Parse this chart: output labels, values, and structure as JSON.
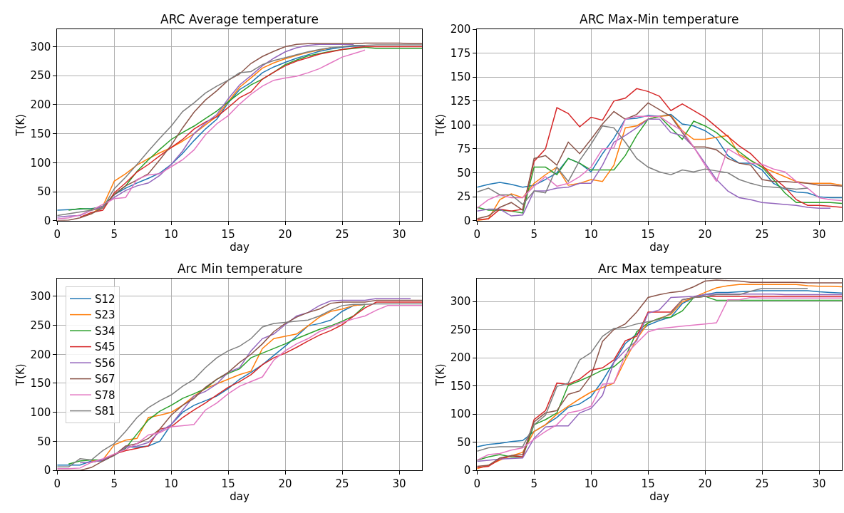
{
  "chart_data": [
    {
      "type": "line",
      "title": "ARC Average temperature",
      "xlabel": "day",
      "ylabel": "T(K)",
      "x": [
        0,
        1,
        2,
        3,
        4,
        5,
        6,
        7,
        8,
        9,
        10,
        11,
        12,
        13,
        14,
        15,
        16,
        17,
        18,
        19,
        20,
        21,
        22,
        23,
        24,
        25,
        26,
        27,
        28,
        29,
        30,
        31,
        32
      ],
      "xlim": [
        0,
        32
      ],
      "xticks": [
        0,
        5,
        10,
        15,
        20,
        25,
        30
      ],
      "ylim": [
        0,
        330
      ],
      "yticks": [
        0,
        50,
        100,
        150,
        200,
        250,
        300
      ],
      "grid": true,
      "series": [
        {
          "color": "#1f77b4",
          "values": [
            18,
            19,
            20,
            21,
            23,
            45,
            56,
            65,
            73,
            82,
            97,
            116,
            138,
            158,
            175,
            203,
            226,
            238,
            255,
            265,
            273,
            280,
            286,
            292,
            296,
            299,
            301,
            302,
            null,
            null,
            null,
            null,
            null
          ]
        },
        {
          "color": "#ff7f0e",
          "values": [
            null,
            null,
            6,
            12,
            25,
            68,
            81,
            96,
            107,
            117,
            126,
            137,
            150,
            165,
            180,
            205,
            230,
            246,
            263,
            272,
            279,
            285,
            290,
            294,
            298,
            null,
            null,
            null,
            null,
            null,
            null,
            null,
            null
          ]
        },
        {
          "color": "#2ca02c",
          "values": [
            null,
            18,
            21,
            20,
            25,
            45,
            60,
            85,
            105,
            123,
            140,
            152,
            163,
            176,
            189,
            205,
            220,
            234,
            244,
            256,
            269,
            277,
            284,
            288,
            292,
            295,
            297,
            299,
            297,
            297,
            297,
            297,
            297
          ]
        },
        {
          "color": "#d62728",
          "values": [
            null,
            null,
            6,
            14,
            18,
            48,
            65,
            84,
            97,
            112,
            126,
            140,
            158,
            170,
            179,
            195,
            212,
            222,
            244,
            256,
            267,
            275,
            281,
            287,
            291,
            295,
            298,
            300,
            300,
            300,
            300,
            300,
            300
          ]
        },
        {
          "color": "#9467bd",
          "values": [
            6,
            8,
            9,
            18,
            25,
            40,
            52,
            60,
            65,
            78,
            97,
            120,
            150,
            168,
            183,
            210,
            234,
            250,
            267,
            280,
            291,
            298,
            302,
            304,
            304,
            304,
            304,
            null,
            null,
            null,
            null,
            null,
            null
          ]
        },
        {
          "color": "#8c564b",
          "values": [
            0,
            1,
            5,
            12,
            22,
            45,
            60,
            70,
            81,
            105,
            130,
            160,
            187,
            208,
            224,
            242,
            253,
            271,
            283,
            292,
            300,
            304,
            305,
            305,
            305,
            305,
            305,
            306,
            306,
            306,
            306,
            305,
            305
          ]
        },
        {
          "color": "#e377c2",
          "values": [
            3,
            5,
            10,
            18,
            28,
            38,
            40,
            71,
            79,
            81,
            93,
            105,
            122,
            148,
            167,
            181,
            201,
            218,
            232,
            242,
            246,
            249,
            255,
            262,
            272,
            282,
            288,
            294,
            null,
            null,
            null,
            null,
            null
          ]
        },
        {
          "color": "#7f7f7f",
          "values": [
            9,
            12,
            15,
            18,
            22,
            55,
            75,
            97,
            120,
            142,
            163,
            188,
            203,
            220,
            232,
            242,
            255,
            257,
            269,
            276,
            281,
            286,
            291,
            295,
            298,
            300,
            302,
            302,
            303,
            303,
            303,
            303,
            303
          ]
        }
      ]
    },
    {
      "type": "line",
      "title": "ARC Max-Min temperature",
      "xlabel": "day",
      "ylabel": "T(K)",
      "x": [
        0,
        1,
        2,
        3,
        4,
        5,
        6,
        7,
        8,
        9,
        10,
        11,
        12,
        13,
        14,
        15,
        16,
        17,
        18,
        19,
        20,
        21,
        22,
        23,
        24,
        25,
        26,
        27,
        28,
        29,
        30,
        31,
        32
      ],
      "xlim": [
        0,
        32
      ],
      "xticks": [
        0,
        5,
        10,
        15,
        20,
        25,
        30
      ],
      "ylim": [
        0,
        200
      ],
      "yticks": [
        0,
        25,
        50,
        75,
        100,
        125,
        150,
        175,
        200
      ],
      "grid": true,
      "series": [
        {
          "color": "#1f77b4",
          "values": [
            35,
            38,
            40,
            38,
            35,
            37,
            43,
            50,
            65,
            60,
            51,
            70,
            86,
            106,
            107,
            110,
            109,
            111,
            101,
            99,
            94,
            86,
            68,
            60,
            60,
            53,
            39,
            33,
            30,
            29,
            25,
            24,
            24
          ]
        },
        {
          "color": "#ff7f0e",
          "values": [
            0,
            2,
            22,
            28,
            24,
            39,
            48,
            56,
            37,
            39,
            43,
            41,
            58,
            97,
            99,
            106,
            109,
            110,
            94,
            85,
            85,
            87,
            89,
            69,
            63,
            56,
            51,
            46,
            41,
            39,
            39,
            39,
            37
          ]
        },
        {
          "color": "#2ca02c",
          "values": [
            14,
            11,
            11,
            10,
            8,
            56,
            56,
            48,
            65,
            60,
            53,
            53,
            53,
            68,
            89,
            106,
            109,
            97,
            85,
            104,
            99,
            92,
            82,
            72,
            63,
            56,
            43,
            29,
            19,
            19,
            19,
            19,
            18
          ]
        },
        {
          "color": "#d62728",
          "values": [
            1,
            2,
            12,
            10,
            12,
            62,
            75,
            118,
            112,
            98,
            108,
            105,
            125,
            128,
            138,
            135,
            130,
            115,
            122,
            115,
            108,
            98,
            88,
            78,
            70,
            58,
            45,
            35,
            22,
            16,
            16,
            15,
            14
          ]
        },
        {
          "color": "#9467bd",
          "values": [
            10,
            12,
            12,
            5,
            6,
            31,
            31,
            34,
            35,
            39,
            39,
            58,
            82,
            89,
            97,
            106,
            106,
            92,
            89,
            77,
            60,
            43,
            31,
            24,
            22,
            19,
            18,
            17,
            16,
            14,
            13,
            13,
            null
          ]
        },
        {
          "color": "#8c564b",
          "values": [
            2,
            5,
            14,
            19,
            11,
            65,
            68,
            58,
            82,
            70,
            85,
            101,
            114,
            106,
            111,
            123,
            116,
            109,
            92,
            77,
            77,
            74,
            65,
            60,
            58,
            43,
            41,
            41,
            40,
            39,
            37,
            37,
            36
          ]
        },
        {
          "color": "#e377c2",
          "values": [
            13,
            22,
            27,
            24,
            24,
            36,
            46,
            36,
            39,
            46,
            56,
            75,
            76,
            106,
            109,
            109,
            109,
            101,
            94,
            77,
            58,
            41,
            75,
            68,
            60,
            59,
            54,
            51,
            41,
            34,
            24,
            22,
            21
          ]
        },
        {
          "color": "#7f7f7f",
          "values": [
            30,
            34,
            27,
            27,
            17,
            31,
            29,
            56,
            41,
            63,
            80,
            99,
            97,
            82,
            65,
            56,
            51,
            48,
            53,
            51,
            54,
            52,
            50,
            43,
            39,
            36,
            35,
            34,
            33,
            34,
            null,
            null,
            null
          ]
        }
      ]
    },
    {
      "type": "line",
      "title": "Arc Min temperature",
      "xlabel": "day",
      "ylabel": "T(K)",
      "x": [
        0,
        1,
        2,
        3,
        4,
        5,
        6,
        7,
        8,
        9,
        10,
        11,
        12,
        13,
        14,
        15,
        16,
        17,
        18,
        19,
        20,
        21,
        22,
        23,
        24,
        25,
        26,
        27,
        28,
        29,
        30,
        31,
        32
      ],
      "xlim": [
        0,
        32
      ],
      "xticks": [
        0,
        5,
        10,
        15,
        20,
        25,
        30
      ],
      "ylim": [
        0,
        330
      ],
      "yticks": [
        0,
        50,
        100,
        150,
        200,
        250,
        300
      ],
      "grid": true,
      "legend": "top left",
      "series": [
        {
          "name": "S12",
          "color": "#1f77b4",
          "values": [
            9,
            9,
            9,
            16,
            16,
            26,
            40,
            40,
            42,
            50,
            79,
            100,
            112,
            120,
            128,
            141,
            157,
            169,
            182,
            198,
            214,
            231,
            249,
            253,
            259,
            274,
            284,
            286,
            null,
            null,
            null,
            null,
            null
          ]
        },
        {
          "name": "S23",
          "color": "#ff7f0e",
          "values": [
            null,
            null,
            null,
            16,
            18,
            44,
            52,
            55,
            91,
            95,
            100,
            112,
            128,
            141,
            149,
            157,
            165,
            171,
            210,
            227,
            231,
            235,
            249,
            264,
            274,
            278,
            284,
            286,
            null,
            null,
            null,
            null,
            null
          ]
        },
        {
          "name": "S34",
          "color": "#2ca02c",
          "values": [
            null,
            11,
            16,
            18,
            18,
            26,
            38,
            63,
            87,
            102,
            112,
            124,
            132,
            141,
            157,
            167,
            175,
            194,
            202,
            210,
            218,
            227,
            235,
            243,
            249,
            257,
            266,
            284,
            null,
            null,
            null,
            null,
            null
          ]
        },
        {
          "name": "S45",
          "color": "#d62728",
          "values": [
            null,
            null,
            null,
            14,
            18,
            28,
            34,
            38,
            42,
            71,
            75,
            91,
            104,
            116,
            130,
            143,
            153,
            165,
            182,
            194,
            202,
            212,
            223,
            233,
            241,
            251,
            266,
            280,
            290,
            290,
            290,
            290,
            290
          ]
        },
        {
          "name": "S56",
          "color": "#9467bd",
          "values": [
            null,
            null,
            13,
            14,
            18,
            26,
            40,
            42,
            48,
            67,
            79,
            104,
            128,
            136,
            149,
            169,
            177,
            206,
            227,
            235,
            251,
            266,
            272,
            284,
            292,
            293,
            293,
            293,
            296,
            296,
            296,
            296,
            null
          ]
        },
        {
          "name": "S67",
          "color": "#8c564b",
          "values": [
            0,
            0,
            0,
            5,
            16,
            26,
            42,
            46,
            55,
            71,
            95,
            112,
            124,
            143,
            157,
            169,
            186,
            200,
            218,
            239,
            253,
            264,
            272,
            278,
            288,
            290,
            290,
            290,
            293,
            293,
            293,
            293,
            293
          ]
        },
        {
          "name": "S78",
          "color": "#e377c2",
          "values": [
            3,
            3,
            4,
            14,
            20,
            28,
            36,
            46,
            61,
            65,
            75,
            77,
            79,
            104,
            116,
            132,
            145,
            153,
            161,
            190,
            206,
            218,
            227,
            239,
            247,
            255,
            261,
            266,
            276,
            284,
            284,
            284,
            284
          ]
        },
        {
          "name": "S81",
          "color": "#7f7f7f",
          "values": [
            6,
            6,
            20,
            18,
            34,
            46,
            67,
            91,
            108,
            120,
            130,
            145,
            157,
            177,
            194,
            206,
            214,
            227,
            247,
            253,
            255,
            257,
            259,
            266,
            276,
            284,
            286,
            286,
            287,
            287,
            287,
            287,
            287
          ]
        }
      ]
    },
    {
      "type": "line",
      "title": "Arc Max tempeature",
      "xlabel": "day",
      "ylabel": "T(K)",
      "x": [
        0,
        1,
        2,
        3,
        4,
        5,
        6,
        7,
        8,
        9,
        10,
        11,
        12,
        13,
        14,
        15,
        16,
        17,
        18,
        19,
        20,
        21,
        22,
        23,
        24,
        25,
        26,
        27,
        28,
        29,
        30,
        31,
        32
      ],
      "xlim": [
        0,
        32
      ],
      "xticks": [
        0,
        5,
        10,
        15,
        20,
        25,
        30
      ],
      "ylim": [
        0,
        340
      ],
      "yticks": [
        0,
        50,
        100,
        150,
        200,
        250,
        300
      ],
      "grid": true,
      "series": [
        {
          "color": "#1f77b4",
          "values": [
            42,
            46,
            48,
            51,
            53,
            69,
            81,
            94,
            112,
            118,
            131,
            159,
            192,
            225,
            242,
            258,
            266,
            272,
            296,
            307,
            312,
            316,
            316,
            317,
            318,
            319,
            319,
            319,
            319,
            319,
            317,
            316,
            315
          ]
        },
        {
          "color": "#ff7f0e",
          "values": [
            3,
            9,
            18,
            26,
            32,
            69,
            81,
            100,
            114,
            127,
            139,
            147,
            155,
            196,
            233,
            262,
            270,
            277,
            299,
            307,
            316,
            324,
            328,
            330,
            330,
            330,
            330,
            330,
            330,
            328,
            327,
            327,
            326
          ]
        },
        {
          "color": "#2ca02c",
          "values": [
            18,
            24,
            28,
            24,
            24,
            81,
            90,
            102,
            151,
            159,
            168,
            178,
            184,
            201,
            246,
            262,
            270,
            272,
            283,
            307,
            309,
            302,
            302,
            302,
            302,
            302,
            302,
            302,
            302,
            302,
            302,
            302,
            302
          ]
        },
        {
          "color": "#d62728",
          "values": [
            5,
            7,
            20,
            26,
            24,
            90,
            106,
            155,
            153,
            162,
            178,
            182,
            196,
            230,
            238,
            281,
            281,
            281,
            303,
            307,
            309,
            309,
            309,
            309,
            309,
            309,
            309,
            309,
            309,
            309,
            309,
            309,
            309
          ]
        },
        {
          "color": "#9467bd",
          "values": [
            16,
            18,
            20,
            21,
            22,
            57,
            77,
            79,
            79,
            102,
            110,
            133,
            192,
            213,
            230,
            279,
            285,
            307,
            308,
            309,
            312,
            313,
            313,
            313,
            313,
            313,
            313,
            312,
            312,
            312,
            312,
            312,
            312
          ]
        },
        {
          "color": "#8c564b",
          "values": [
            7,
            9,
            22,
            26,
            28,
            86,
            102,
            106,
            135,
            141,
            168,
            229,
            250,
            260,
            281,
            307,
            312,
            316,
            318,
            326,
            336,
            338,
            337,
            336,
            334,
            334,
            334,
            334,
            334,
            333,
            333,
            333,
            333
          ]
        },
        {
          "color": "#e377c2",
          "values": [
            18,
            28,
            30,
            36,
            40,
            55,
            69,
            81,
            102,
            106,
            114,
            153,
            155,
            205,
            226,
            246,
            252,
            254,
            256,
            258,
            260,
            262,
            303,
            303,
            307,
            306,
            306,
            306,
            306,
            306,
            306,
            306,
            306
          ]
        },
        {
          "color": "#7f7f7f",
          "values": [
            34,
            40,
            42,
            42,
            42,
            81,
            98,
            149,
            155,
            196,
            209,
            238,
            252,
            254,
            260,
            264,
            268,
            279,
            303,
            307,
            309,
            312,
            312,
            312,
            318,
            323,
            323,
            323,
            323,
            323,
            null,
            null,
            null
          ]
        }
      ]
    }
  ]
}
